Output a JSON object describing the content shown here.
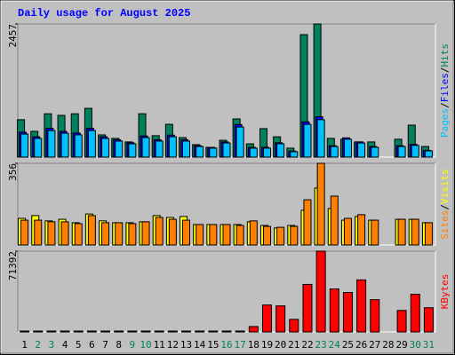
{
  "title": "Daily usage for August 2025",
  "separator": "/",
  "chart_data": [
    {
      "type": "bar",
      "ylim": [
        0,
        2457
      ],
      "yticks": [
        2457
      ],
      "series": [
        {
          "name": "Hits",
          "color": "#00805c",
          "values": [
            690,
            475,
            800,
            770,
            800,
            900,
            410,
            345,
            280,
            800,
            395,
            605,
            360,
            230,
            180,
            310,
            705,
            245,
            525,
            375,
            165,
            2260,
            2457,
            345,
            330,
            280,
            280,
            null,
            330,
            590,
            195
          ]
        },
        {
          "name": "Files",
          "color": "#0000ff",
          "values": [
            460,
            375,
            530,
            475,
            445,
            530,
            375,
            320,
            265,
            390,
            320,
            405,
            320,
            210,
            180,
            280,
            600,
            180,
            180,
            265,
            110,
            650,
            745,
            210,
            355,
            280,
            195,
            null,
            210,
            235,
            125
          ]
        },
        {
          "name": "Pages",
          "color": "#00c0ff",
          "values": [
            425,
            345,
            490,
            440,
            410,
            490,
            345,
            295,
            245,
            360,
            295,
            375,
            295,
            195,
            165,
            260,
            555,
            165,
            165,
            245,
            100,
            605,
            690,
            195,
            330,
            260,
            180,
            null,
            195,
            215,
            115
          ]
        }
      ]
    },
    {
      "type": "bar",
      "ylim": [
        0,
        356
      ],
      "yticks": [
        356
      ],
      "series": [
        {
          "name": "Visits",
          "color": "#ffff00",
          "values": [
            116,
            128,
            105,
            112,
            97,
            135,
            105,
            97,
            97,
            101,
            128,
            120,
            124,
            89,
            89,
            89,
            89,
            101,
            85,
            74,
            85,
            151,
            248,
            159,
            108,
            124,
            108,
            null,
            112,
            112,
            97
          ]
        },
        {
          "name": "Sites",
          "color": "#ff8000",
          "values": [
            108,
            108,
            101,
            101,
            93,
            128,
            97,
            97,
            93,
            101,
            120,
            112,
            108,
            89,
            89,
            89,
            85,
            105,
            81,
            77,
            81,
            197,
            356,
            213,
            116,
            132,
            108,
            null,
            112,
            112,
            97
          ]
        }
      ]
    },
    {
      "type": "bar",
      "ylim": [
        0,
        71392
      ],
      "yticks": [
        71392
      ],
      "categories": [
        "1",
        "2",
        "3",
        "4",
        "5",
        "6",
        "7",
        "8",
        "9",
        "10",
        "11",
        "12",
        "13",
        "14",
        "15",
        "16",
        "17",
        "18",
        "19",
        "20",
        "21",
        "22",
        "23",
        "24",
        "25",
        "26",
        "27",
        "28",
        "29",
        "30",
        "31"
      ],
      "category_colors": [
        "#000000",
        "#00805c",
        "#00805c",
        "#000000",
        "#000000",
        "#000000",
        "#000000",
        "#000000",
        "#00805c",
        "#00805c",
        "#000000",
        "#000000",
        "#000000",
        "#000000",
        "#000000",
        "#00805c",
        "#00805c",
        "#000000",
        "#000000",
        "#000000",
        "#000000",
        "#000000",
        "#00805c",
        "#00805c",
        "#000000",
        "#000000",
        "#000000",
        "#000000",
        "#000000",
        "#00805c",
        "#00805c"
      ],
      "series": [
        {
          "name": "KBytes",
          "color": "#ff0000",
          "values": [
            700,
            700,
            700,
            700,
            700,
            700,
            700,
            700,
            700,
            700,
            700,
            700,
            700,
            700,
            700,
            700,
            700,
            4760,
            23800,
            23000,
            11100,
            42000,
            71392,
            38000,
            34900,
            46000,
            28500,
            null,
            19000,
            33300,
            21400
          ]
        }
      ]
    }
  ]
}
